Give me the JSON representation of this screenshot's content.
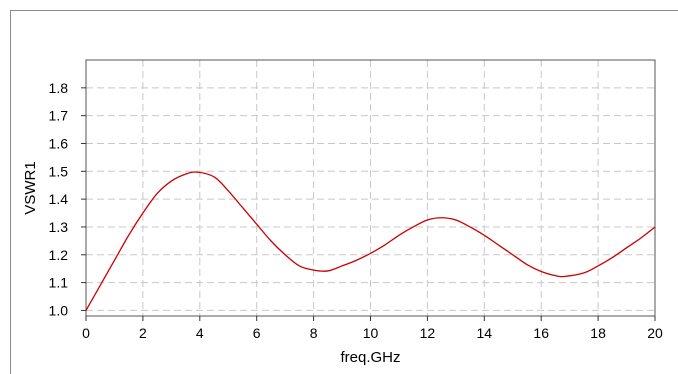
{
  "chart_data": {
    "type": "line",
    "title": "",
    "xlabel": "freq.GHz",
    "ylabel": "VSWR1",
    "xlim": [
      0,
      20
    ],
    "ylim": [
      0.98,
      1.9
    ],
    "x_ticks": [
      0,
      2,
      4,
      6,
      8,
      10,
      12,
      14,
      16,
      18,
      20
    ],
    "x_tick_labels": [
      "0",
      "2",
      "4",
      "6",
      "8",
      "10",
      "12",
      "14",
      "16",
      "18",
      "20"
    ],
    "y_ticks": [
      1.0,
      1.1,
      1.2,
      1.3,
      1.4,
      1.5,
      1.6,
      1.7,
      1.8
    ],
    "y_tick_labels": [
      "1.0",
      "1.1",
      "1.2",
      "1.3",
      "1.4",
      "1.5",
      "1.6",
      "1.7",
      "1.8"
    ],
    "grid": true,
    "grid_style": "dashed",
    "legend": "none",
    "series": [
      {
        "color": "#cc0000",
        "x": [
          0,
          0.5,
          1,
          1.5,
          2,
          2.5,
          3,
          3.5,
          3.9,
          4.5,
          5,
          5.5,
          6,
          6.5,
          7,
          7.5,
          8,
          8.5,
          9,
          9.5,
          10,
          10.5,
          11,
          11.5,
          12,
          12.5,
          13,
          13.5,
          14,
          14.5,
          15,
          15.5,
          16,
          16.5,
          16.8,
          17.5,
          18,
          18.5,
          19,
          19.5,
          20
        ],
        "y": [
          1.0,
          1.09,
          1.18,
          1.27,
          1.35,
          1.42,
          1.465,
          1.49,
          1.497,
          1.48,
          1.43,
          1.37,
          1.31,
          1.25,
          1.2,
          1.16,
          1.145,
          1.142,
          1.16,
          1.18,
          1.205,
          1.235,
          1.27,
          1.3,
          1.325,
          1.333,
          1.325,
          1.3,
          1.27,
          1.235,
          1.2,
          1.165,
          1.14,
          1.125,
          1.122,
          1.135,
          1.16,
          1.19,
          1.225,
          1.26,
          1.3
        ]
      }
    ]
  }
}
